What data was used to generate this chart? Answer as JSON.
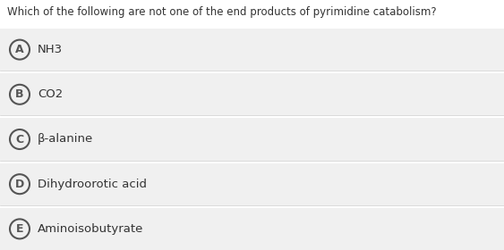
{
  "question": "Which of the following are not one of the end products of pyrimidine catabolism?",
  "options": [
    {
      "label": "A",
      "text": "NH3"
    },
    {
      "label": "B",
      "text": "CO2"
    },
    {
      "label": "C",
      "text": "β-alanine"
    },
    {
      "label": "D",
      "text": "Dihydroorotic acid"
    },
    {
      "label": "E",
      "text": "Aminoisobutyrate"
    }
  ],
  "bg_color": "#ffffff",
  "row_bg": "#f0f0f0",
  "row_border": "#cccccc",
  "question_color": "#333333",
  "option_text_color": "#333333",
  "circle_edge_color": "#555555",
  "circle_fill_color": "#f0f0f0",
  "question_fontsize": 8.5,
  "option_fontsize": 9.5,
  "label_fontsize": 9.0
}
